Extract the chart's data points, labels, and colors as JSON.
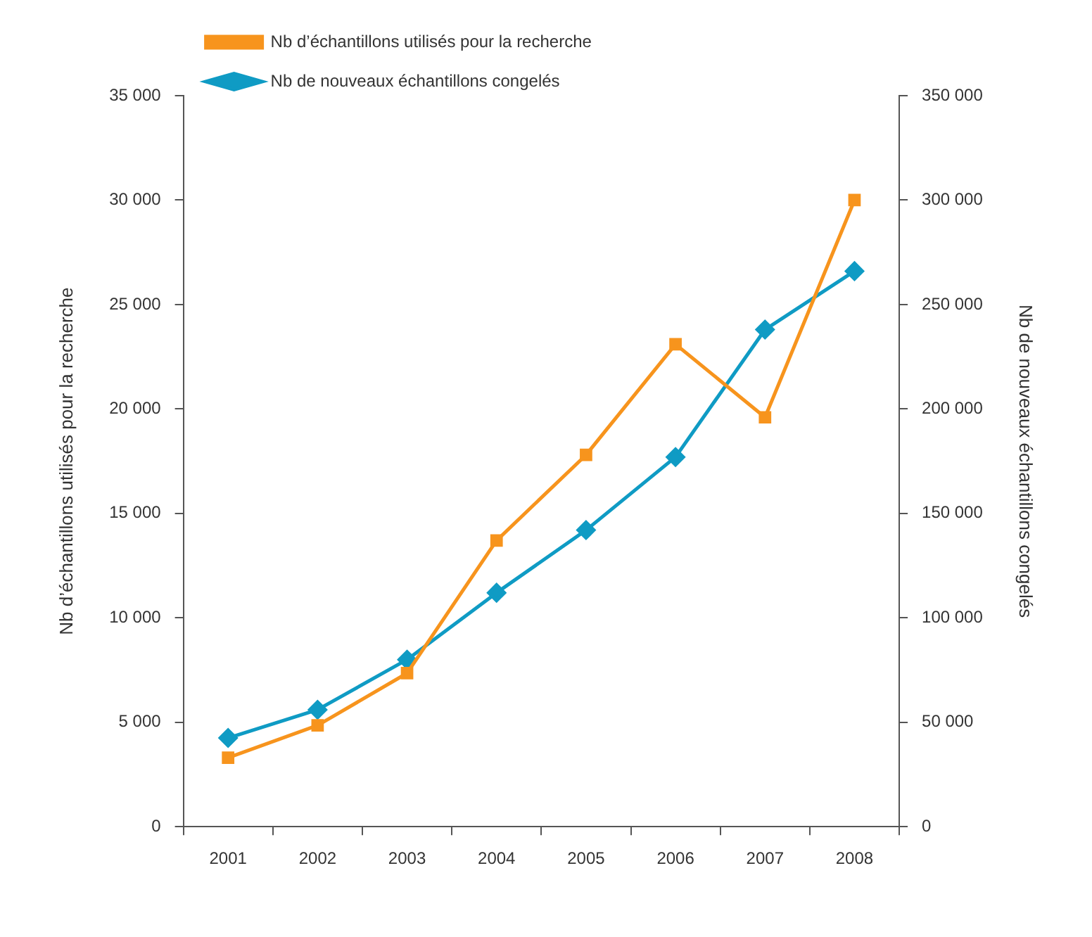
{
  "chart_data": {
    "type": "line",
    "categories": [
      "2001",
      "2002",
      "2003",
      "2004",
      "2005",
      "2006",
      "2007",
      "2008"
    ],
    "series": [
      {
        "name": "Nb d’échantillons utilisés pour la recherche",
        "color": "#f7941d",
        "values": [
          3300,
          4850,
          7350,
          13700,
          17800,
          23100,
          19600,
          30000
        ],
        "marker": "square"
      },
      {
        "name": "Nb de nouveaux échantillons congelés",
        "color": "#0f9bc4",
        "values": [
          42500,
          56000,
          80000,
          112000,
          142000,
          177000,
          238000,
          266000
        ],
        "marker": "diamond",
        "axis": "y2"
      }
    ],
    "ylabel": "Nb d’échantillons utilisés pour la recherche",
    "y2label": "Nb de nouveaux échantillons congelés",
    "ylim": [
      0,
      35000
    ],
    "yticks": [
      {
        "value": 0,
        "label": "0"
      },
      {
        "value": 5000,
        "label": "5 000"
      },
      {
        "value": 10000,
        "label": "10 000"
      },
      {
        "value": 15000,
        "label": "15 000"
      },
      {
        "value": 20000,
        "label": "20 000"
      },
      {
        "value": 25000,
        "label": "25 000"
      },
      {
        "value": 30000,
        "label": "30 000"
      },
      {
        "value": 35000,
        "label": "35 000"
      }
    ],
    "y2lim": [
      0,
      350000
    ],
    "y2ticks": [
      {
        "value": 0,
        "label": "0"
      },
      {
        "value": 50000,
        "label": "50 000"
      },
      {
        "value": 100000,
        "label": "100 000"
      },
      {
        "value": 150000,
        "label": "150 000"
      },
      {
        "value": 200000,
        "label": "200 000"
      },
      {
        "value": 250000,
        "label": "250 000"
      },
      {
        "value": 300000,
        "label": "300 000"
      },
      {
        "value": 350000,
        "label": "350 000"
      }
    ],
    "grid": false,
    "legend": "top left",
    "line_style": "solid"
  }
}
